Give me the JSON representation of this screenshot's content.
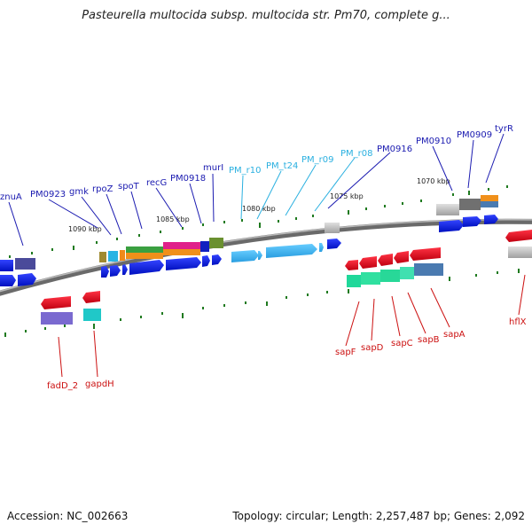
{
  "title": "Pasteurella multocida subsp. multocida str. Pm70, complete g...",
  "footer": {
    "accession": "Accession: NC_002663",
    "topology": "Topology: circular; Length: 2,257,487 bp; Genes: 2,092"
  },
  "colors": {
    "forward_gene": "#0a1ad6",
    "reverse_gene": "#e8102a",
    "rna_label": "#2ab0e0",
    "forward_label": "#1a1ab0",
    "reverse_label": "#cc1111",
    "tick": "#1f7a1f",
    "backbone": "#7a7a7a"
  },
  "scale_labels": [
    "1090 kbp",
    "1085 kbp",
    "1080 kbp",
    "1075 kbp",
    "1070 kbp"
  ],
  "forward_labels": [
    {
      "text": "znuA",
      "type": "cds"
    },
    {
      "text": "PM0923",
      "type": "cds"
    },
    {
      "text": "gmk",
      "type": "cds"
    },
    {
      "text": "rpoZ",
      "type": "cds"
    },
    {
      "text": "spoT",
      "type": "cds"
    },
    {
      "text": "recG",
      "type": "cds"
    },
    {
      "text": "PM0918",
      "type": "cds"
    },
    {
      "text": "murI",
      "type": "cds"
    },
    {
      "text": "PM_r10",
      "type": "rna"
    },
    {
      "text": "PM_t24",
      "type": "rna"
    },
    {
      "text": "PM_r09",
      "type": "rna"
    },
    {
      "text": "PM_r08",
      "type": "rna"
    },
    {
      "text": "PM0916",
      "type": "cds"
    },
    {
      "text": "PM0910",
      "type": "cds"
    },
    {
      "text": "PM0909",
      "type": "cds"
    },
    {
      "text": "tyrR",
      "type": "cds"
    }
  ],
  "reverse_labels": [
    {
      "text": "fadD_2"
    },
    {
      "text": "gapdH"
    },
    {
      "text": "sapF"
    },
    {
      "text": "sapD"
    },
    {
      "text": "sapC"
    },
    {
      "text": "sapB"
    },
    {
      "text": "sapA"
    },
    {
      "text": "hflX"
    }
  ]
}
